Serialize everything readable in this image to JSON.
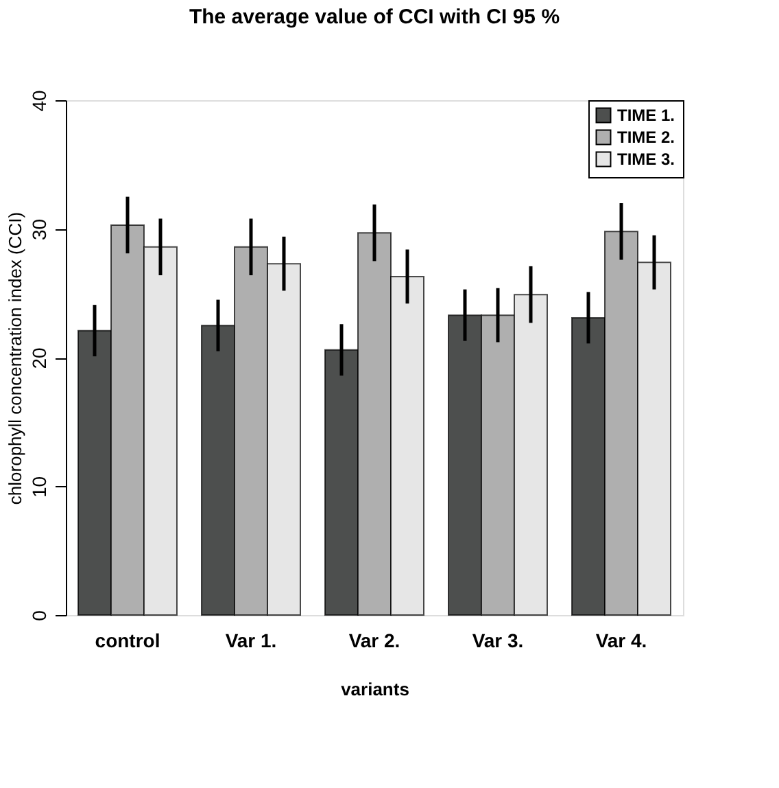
{
  "chart_data": {
    "type": "bar",
    "title": "The average value of CCI with CI 95 %",
    "xlabel": "variants",
    "ylabel": "chlorophyll concentration index (CCI)",
    "categories": [
      "control",
      "Var 1.",
      "Var 2.",
      "Var 3.",
      "Var 4."
    ],
    "series": [
      {
        "name": "TIME 1.",
        "color": "#4d4f4e",
        "values": [
          22.1,
          22.5,
          20.6,
          23.3,
          23.1
        ],
        "errors": [
          2.0,
          2.0,
          2.0,
          2.0,
          2.0
        ]
      },
      {
        "name": "TIME 2.",
        "color": "#afafaf",
        "values": [
          30.3,
          28.6,
          29.7,
          23.3,
          29.8
        ],
        "errors": [
          2.2,
          2.2,
          2.2,
          2.1,
          2.2
        ]
      },
      {
        "name": "TIME 3.",
        "color": "#e6e6e6",
        "values": [
          28.6,
          27.3,
          26.3,
          24.9,
          27.4
        ],
        "errors": [
          2.2,
          2.1,
          2.1,
          2.2,
          2.1
        ]
      }
    ],
    "ylim": [
      0,
      40
    ],
    "yticks": [
      0,
      10,
      20,
      30,
      40
    ],
    "grid": false,
    "legend": "top right"
  }
}
